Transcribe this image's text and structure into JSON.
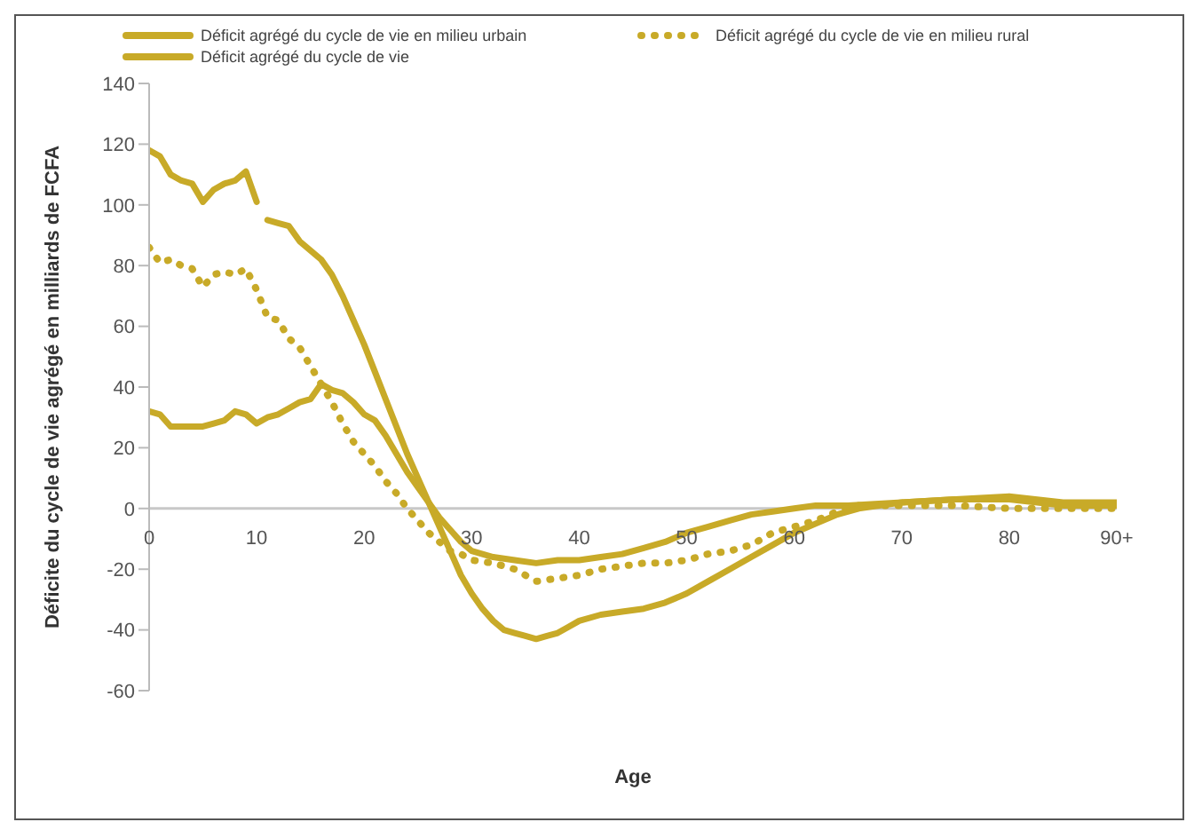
{
  "chart_data": {
    "type": "line",
    "xlabel": "Age",
    "ylabel": "Déficite du cycle de vie agrégé en milliards de FCFA",
    "xlim": [
      0,
      90
    ],
    "xticks": [
      0,
      10,
      20,
      30,
      40,
      50,
      60,
      70,
      80,
      {
        "value": 90,
        "label": "90+"
      }
    ],
    "ylim": [
      -60,
      140
    ],
    "yticks": [
      -60,
      -40,
      -20,
      0,
      20,
      40,
      60,
      80,
      100,
      120,
      140
    ],
    "legend": "top",
    "series": [
      {
        "name": "Déficit agrégé du cycle de vie en milieu urbain",
        "color": "#c8aa28",
        "line_style": "solid",
        "x": [
          0,
          1,
          2,
          3,
          4,
          5,
          6,
          7,
          8,
          9,
          10,
          11,
          12,
          13,
          14,
          15,
          16,
          17,
          18,
          19,
          20,
          21,
          22,
          23,
          24,
          25,
          26,
          27,
          28,
          29,
          30,
          32,
          34,
          36,
          38,
          40,
          42,
          44,
          46,
          48,
          50,
          52,
          54,
          56,
          58,
          60,
          62,
          65,
          70,
          75,
          80,
          85,
          90
        ],
        "values": [
          32,
          31,
          27,
          27,
          27,
          27,
          28,
          29,
          32,
          31,
          28,
          30,
          31,
          33,
          35,
          36,
          41,
          39,
          38,
          35,
          31,
          29,
          24,
          18,
          12,
          7,
          2,
          -3,
          -7,
          -11,
          -14,
          -16,
          -17,
          -18,
          -17,
          -17,
          -16,
          -15,
          -13,
          -11,
          -8,
          -6,
          -4,
          -2,
          -1,
          0,
          1,
          1,
          2,
          3,
          4,
          2,
          2
        ]
      },
      {
        "name": "Déficit agrégé du cycle de vie en milieu rural",
        "color": "#c8aa28",
        "line_style": "dotted",
        "x": [
          0,
          1,
          2,
          3,
          4,
          5,
          6,
          7,
          8,
          9,
          10,
          11,
          12,
          13,
          14,
          15,
          16,
          17,
          18,
          19,
          20,
          21,
          22,
          23,
          24,
          25,
          26,
          27,
          28,
          29,
          30,
          32,
          34,
          36,
          38,
          40,
          42,
          44,
          46,
          48,
          50,
          52,
          54,
          56,
          58,
          60,
          62,
          64,
          66,
          70,
          75,
          80,
          85,
          90
        ],
        "values": [
          86,
          81,
          82,
          80,
          79,
          73,
          77,
          78,
          77,
          79,
          72,
          63,
          62,
          56,
          53,
          47,
          41,
          35,
          28,
          22,
          18,
          14,
          9,
          5,
          0,
          -4,
          -8,
          -11,
          -14,
          -15,
          -17,
          -18,
          -20,
          -24,
          -23,
          -22,
          -20,
          -19,
          -18,
          -18,
          -17,
          -15,
          -14,
          -12,
          -8,
          -6,
          -4,
          -1,
          1,
          1,
          1,
          0,
          0,
          0
        ]
      },
      {
        "name": "Déficit agrégé du cycle de vie",
        "color": "#c8aa28",
        "line_style": "solid",
        "x": [
          0,
          1,
          2,
          3,
          4,
          5,
          6,
          7,
          8,
          9,
          10,
          10.5,
          11,
          12,
          13,
          14,
          15,
          16,
          17,
          18,
          19,
          20,
          21,
          22,
          23,
          24,
          25,
          26,
          27,
          28,
          29,
          30,
          31,
          32,
          33,
          34,
          35,
          36,
          37,
          38,
          39,
          40,
          42,
          44,
          46,
          48,
          50,
          52,
          54,
          56,
          58,
          60,
          62,
          64,
          66,
          68,
          70,
          75,
          80,
          85,
          90
        ],
        "values": [
          118,
          116,
          110,
          108,
          107,
          101,
          105,
          107,
          108,
          111,
          101,
          null,
          95,
          94,
          93,
          88,
          85,
          82,
          77,
          70,
          62,
          54,
          45,
          36,
          27,
          18,
          10,
          2,
          -6,
          -14,
          -22,
          -28,
          -33,
          -37,
          -40,
          -41,
          -42,
          -43,
          -42,
          -41,
          -39,
          -37,
          -35,
          -34,
          -33,
          -31,
          -28,
          -24,
          -20,
          -16,
          -12,
          -8,
          -5,
          -2,
          0,
          1,
          2,
          3,
          3,
          1,
          1
        ]
      }
    ]
  }
}
